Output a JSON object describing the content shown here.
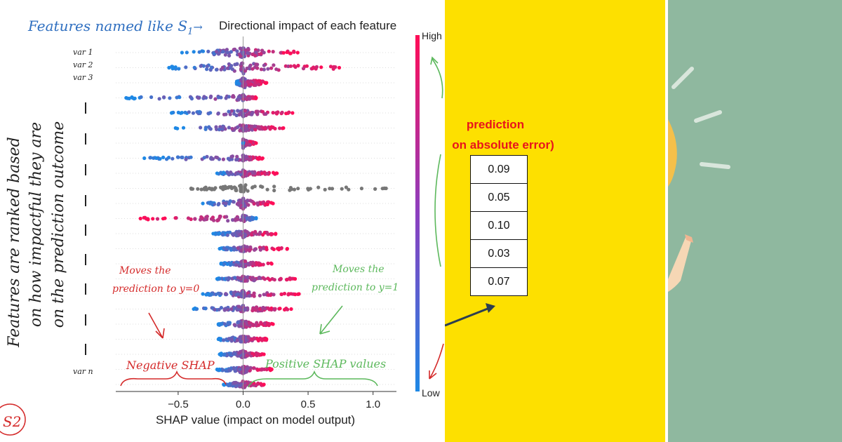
{
  "chart_data": {
    "type": "scatter",
    "subtype": "shap-beeswarm",
    "title": "Directional impact of each feature",
    "xlabel": "SHAP value (impact on model output)",
    "ylabel": "",
    "xlim": [
      -0.98,
      1.18
    ],
    "xticks": [
      -0.5,
      0.0,
      0.5,
      1.0
    ],
    "xtick_labels": [
      "−0.5",
      "0.0",
      "0.5",
      "1.0"
    ],
    "colorbar": {
      "high_label": "High",
      "low_label": "Low",
      "high_color": "#ff0d57",
      "low_color": "#1e88e5"
    },
    "rows": [
      {
        "min": -0.47,
        "max": 0.42,
        "width": 0.8,
        "low_side": "left"
      },
      {
        "min": -0.57,
        "max": 0.74,
        "width": 0.85,
        "low_side": "left"
      },
      {
        "min": -0.05,
        "max": 0.18,
        "width": 0.9,
        "low_side": "left"
      },
      {
        "min": -0.9,
        "max": 0.1,
        "width": 0.45,
        "low_side": "left"
      },
      {
        "min": -0.55,
        "max": 0.38,
        "width": 0.5,
        "low_side": "left"
      },
      {
        "min": -0.52,
        "max": 0.31,
        "width": 0.5,
        "low_side": "left"
      },
      {
        "min": 0.0,
        "max": 0.1,
        "width": 0.7,
        "low_side": "left"
      },
      {
        "min": -0.76,
        "max": 0.15,
        "width": 0.45,
        "low_side": "left"
      },
      {
        "min": -0.2,
        "max": 0.26,
        "width": 0.5,
        "low_side": "left"
      },
      {
        "min": -0.4,
        "max": 1.1,
        "width": 0.55,
        "low_side": "none"
      },
      {
        "min": -0.31,
        "max": 0.23,
        "width": 0.75,
        "low_side": "left"
      },
      {
        "min": -0.79,
        "max": 0.1,
        "width": 0.6,
        "low_side": "right"
      },
      {
        "min": -0.23,
        "max": 0.25,
        "width": 0.55,
        "low_side": "left"
      },
      {
        "min": -0.18,
        "max": 0.34,
        "width": 0.45,
        "low_side": "left"
      },
      {
        "min": -0.17,
        "max": 0.22,
        "width": 0.5,
        "low_side": "left"
      },
      {
        "min": -0.2,
        "max": 0.4,
        "width": 0.4,
        "low_side": "left"
      },
      {
        "min": -0.31,
        "max": 0.43,
        "width": 0.55,
        "low_side": "left"
      },
      {
        "min": -0.38,
        "max": 0.37,
        "width": 0.5,
        "low_side": "left"
      },
      {
        "min": -0.19,
        "max": 0.23,
        "width": 0.6,
        "low_side": "left"
      },
      {
        "min": -0.19,
        "max": 0.18,
        "width": 0.6,
        "low_side": "left"
      },
      {
        "min": -0.18,
        "max": 0.16,
        "width": 0.55,
        "low_side": "left"
      },
      {
        "min": -0.2,
        "max": 0.22,
        "width": 0.6,
        "low_side": "left"
      },
      {
        "min": -0.15,
        "max": 0.16,
        "width": 0.6,
        "low_side": "left"
      }
    ]
  },
  "annotations": {
    "features_named": "Features named like S",
    "features_subscript": "1",
    "arrow_glyph": "→",
    "var_labels": [
      "var 1",
      "var 2",
      "var 3",
      "var n"
    ],
    "ranked_lines": [
      "Features are ranked based",
      "on how impactful they are",
      "on the prediction outcome"
    ],
    "moves_left_line1": "Moves the",
    "moves_left_line2": "prediction to y=0",
    "moves_right_line1": "Moves the",
    "moves_right_line2": "prediction to y=1",
    "negative_shap": "Negative SHAP",
    "positive_shap": "Positive SHAP values",
    "logo_text": "S2"
  },
  "prediction_panel": {
    "title_line1": "prediction",
    "title_line2": "on absolute  error)",
    "values": [
      "0.09",
      "0.05",
      "0.10",
      "0.03",
      "0.07"
    ]
  },
  "colors": {
    "yellow_bg": "#fde000",
    "green_bg": "#8fb89f",
    "hand_blue": "#2f6fc0",
    "hand_red": "#d42a2a",
    "hand_green": "#5cb85c",
    "pred_red": "#e8141c"
  }
}
